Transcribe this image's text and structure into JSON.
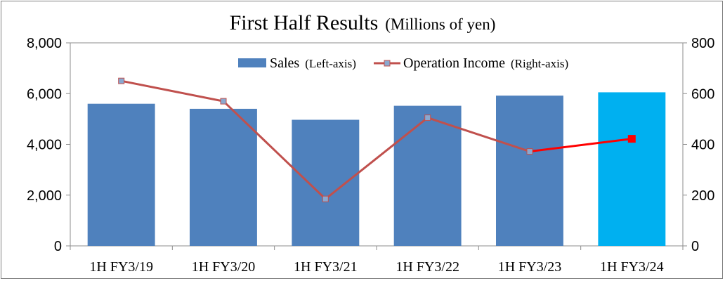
{
  "chart_data": {
    "type": "bar",
    "title": "First Half Results",
    "title_unit": "(Millions of yen)",
    "categories": [
      "1H FY3/19",
      "1H FY3/20",
      "1H FY3/21",
      "1H FY3/22",
      "1H FY3/23",
      "1H FY3/24"
    ],
    "series": [
      {
        "name": "Sales",
        "name_note": "(Left-axis)",
        "type": "bar",
        "axis": "left",
        "color": "#4f81bd",
        "highlight_color": "#00b0f0",
        "highlight_index": 5,
        "values": [
          5600,
          5400,
          4970,
          5520,
          5920,
          6050
        ]
      },
      {
        "name": "Operation Income",
        "name_note": "(Right-axis)",
        "type": "line",
        "axis": "right",
        "color": "#c0504d",
        "highlight_color": "#ff0000",
        "highlight_index": 5,
        "marker_fill": "#8aa8d0",
        "values": [
          650,
          570,
          185,
          505,
          372,
          422
        ]
      }
    ],
    "y_left": {
      "min": 0,
      "max": 8000,
      "ticks": [
        "0",
        "2,000",
        "4,000",
        "6,000",
        "8,000"
      ]
    },
    "y_right": {
      "min": 0,
      "max": 800,
      "ticks": [
        "0",
        "200",
        "400",
        "600",
        "800"
      ]
    },
    "grid": false,
    "legend_position": "top-right"
  }
}
